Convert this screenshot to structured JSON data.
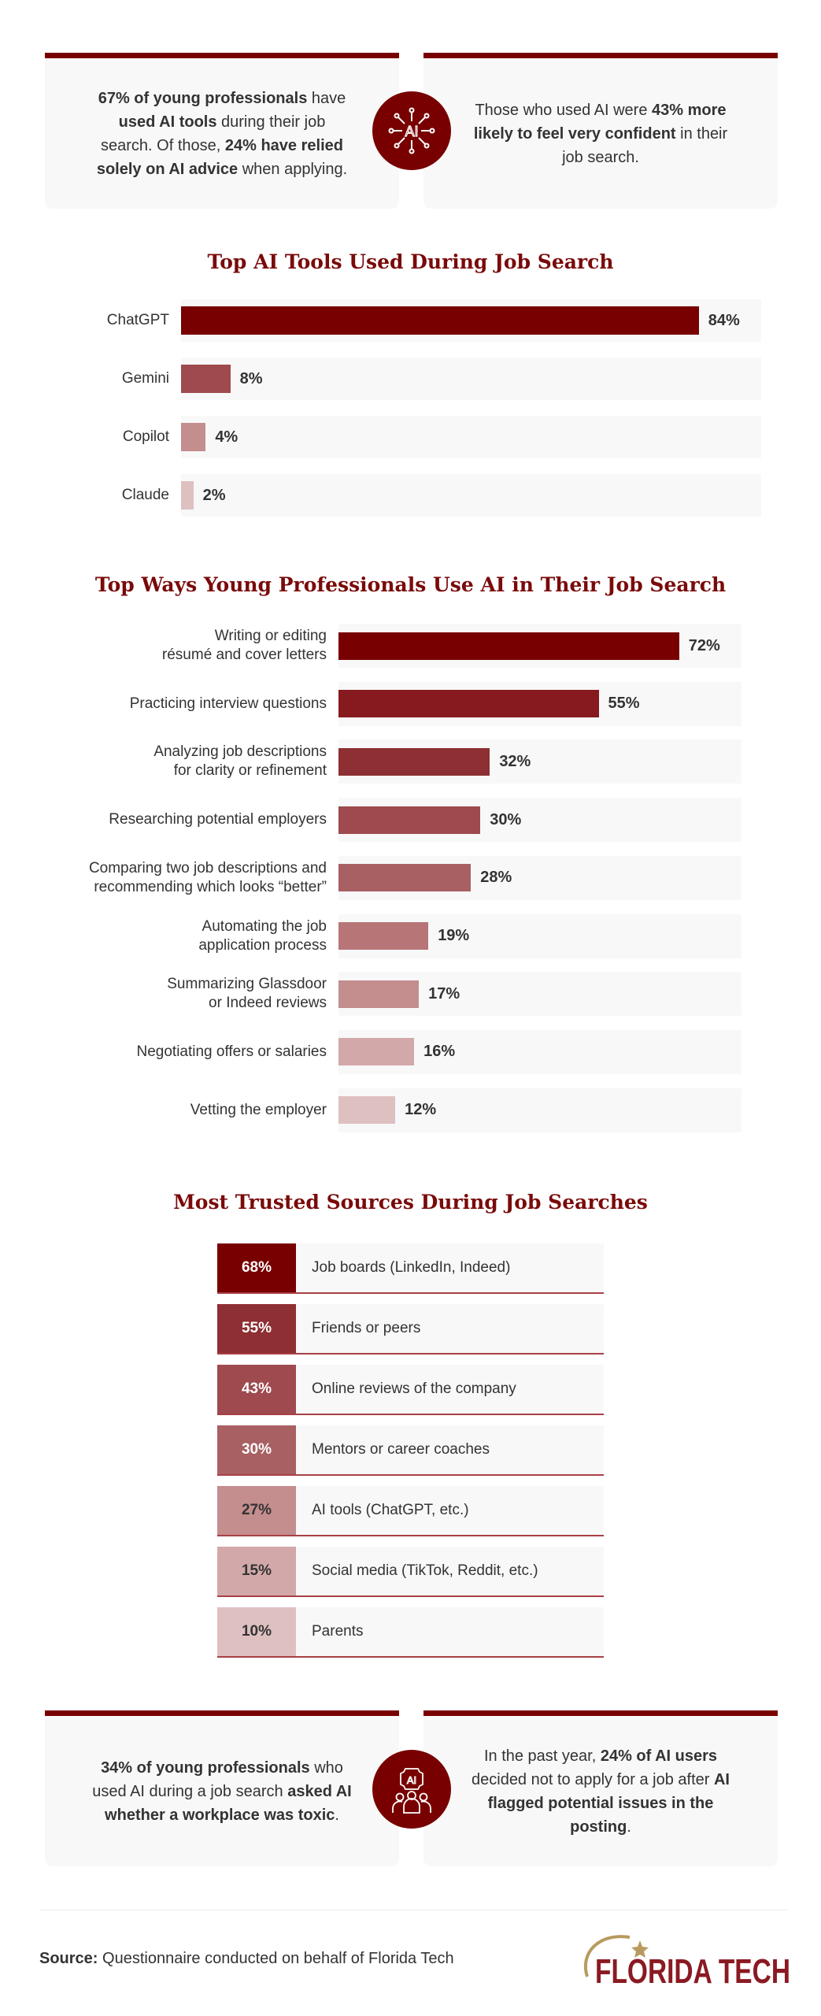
{
  "top_stats": {
    "left": {
      "parts": [
        {
          "t": "67% of young professionals",
          "b": true
        },
        {
          "t": " have ",
          "b": false
        },
        {
          "t": "used AI tools",
          "b": true
        },
        {
          "t": " during their job search. Of those, ",
          "b": false
        },
        {
          "t": "24% have relied solely on AI advice",
          "b": true
        },
        {
          "t": " when applying.",
          "b": false
        }
      ]
    },
    "icon": "ai-network-icon",
    "right": {
      "parts": [
        {
          "t": "Those who used AI were ",
          "b": false
        },
        {
          "t": "43% more likely to feel very confident",
          "b": true
        },
        {
          "t": " in their job search.",
          "b": false
        }
      ]
    }
  },
  "chart_data": [
    {
      "type": "bar",
      "orientation": "horizontal",
      "title": "Top AI Tools Used During Job Search",
      "categories": [
        "ChatGPT",
        "Gemini",
        "Copilot",
        "Claude"
      ],
      "values": [
        84,
        8,
        4,
        2
      ],
      "value_labels": [
        "84%",
        "8%",
        "4%",
        "2%"
      ],
      "colors": [
        "#780000",
        "#9e4a4e",
        "#c48d8e",
        "#dfc0c1"
      ],
      "unit": "%"
    },
    {
      "type": "bar",
      "orientation": "horizontal",
      "title": "Top Ways Young Professionals Use AI in Their Job Search",
      "categories": [
        "Writing or editing\nrésumé and cover letters",
        "Practicing interview questions",
        "Analyzing job descriptions\nfor clarity or refinement",
        "Researching potential employers",
        "Comparing two job descriptions and\nrecommending which looks “better”",
        "Automating the job\napplication process",
        "Summarizing Glassdoor\nor Indeed reviews",
        "Negotiating offers or salaries",
        "Vetting the employer"
      ],
      "values": [
        72,
        55,
        32,
        30,
        28,
        19,
        17,
        16,
        12
      ],
      "value_labels": [
        "72%",
        "55%",
        "32%",
        "30%",
        "28%",
        "19%",
        "17%",
        "16%",
        "12%"
      ],
      "colors": [
        "#780000",
        "#861a1e",
        "#8e2f33",
        "#9e4a4e",
        "#a86063",
        "#b87577",
        "#c48d8e",
        "#d3a8a9",
        "#dfc0c1"
      ],
      "unit": "%"
    },
    {
      "type": "table",
      "title": "Most Trusted Sources During Job Searches",
      "categories": [
        "Job boards (LinkedIn, Indeed)",
        "Friends or peers",
        "Online reviews of the company",
        "Mentors or career coaches",
        "AI tools (ChatGPT, etc.)",
        "Social media (TikTok, Reddit, etc.)",
        "Parents"
      ],
      "values": [
        68,
        55,
        43,
        30,
        27,
        15,
        10
      ],
      "value_labels": [
        "68%",
        "55%",
        "43%",
        "30%",
        "27%",
        "15%",
        "10%"
      ],
      "colors": [
        "#780000",
        "#8e2f33",
        "#9e4a4e",
        "#a86063",
        "#c48d8e",
        "#d3a8a9",
        "#dfc0c1"
      ],
      "unit": "%"
    }
  ],
  "bottom_stats": {
    "left": {
      "parts": [
        {
          "t": "34% of young professionals",
          "b": true
        },
        {
          "t": " who used AI during a job search ",
          "b": false
        },
        {
          "t": "asked AI whether a workplace was toxic",
          "b": true
        },
        {
          "t": ".",
          "b": false
        }
      ]
    },
    "icon": "ai-team-icon",
    "right": {
      "parts": [
        {
          "t": "In the past year, ",
          "b": false
        },
        {
          "t": "24% of AI users",
          "b": true
        },
        {
          "t": " decided not to apply for a job after ",
          "b": false
        },
        {
          "t": "AI flagged potential issues in the posting",
          "b": true
        },
        {
          "t": ".",
          "b": false
        }
      ]
    }
  },
  "footer": {
    "source_label": "Source:",
    "source_text": " Questionnaire conducted on behalf of Florida Tech",
    "logo_text": "FLORIDA TECH"
  },
  "accent": "#780000"
}
